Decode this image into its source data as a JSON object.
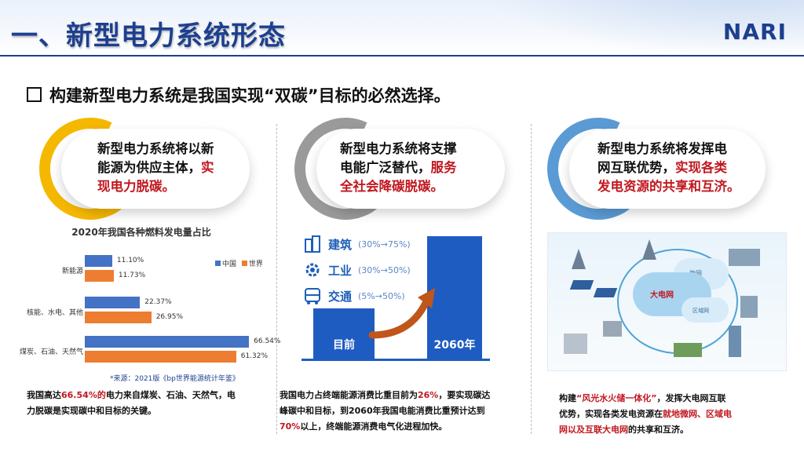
{
  "header": {
    "title": "一、新型电力系统形态",
    "logo": "NARI"
  },
  "subhead": "构建新型电力系统是我国实现“双碳”目标的必然选择。",
  "colors": {
    "accent": "#1d3f8f",
    "highlight": "#c0181f",
    "yellow": "#f5b800",
    "grey": "#9a9a9a",
    "lightblue": "#5b9bd5"
  },
  "cards": [
    {
      "line1": "新型电力系统将以新",
      "line2_a": "能源为供应主体，",
      "line2_b": "实",
      "line3": "现电力脱碳。"
    },
    {
      "line1": "新型电力系统将支撑",
      "line2_a": "电能广泛替代，",
      "line2_b": "服务",
      "line3": "全社会降碳脱碳。"
    },
    {
      "line1": "新型电力系统将发挥电",
      "line2_a": "网互联优势，",
      "line2_b": "实现各类",
      "line3": "发电资源的共享和互济。"
    }
  ],
  "chart_data": {
    "type": "bar",
    "title": "2020年我国各种燃料发电量占比",
    "orientation": "horizontal",
    "categories": [
      "新能源",
      "核能、水电、其他",
      "煤炭、石油、天然气"
    ],
    "series": [
      {
        "name": "中国",
        "color": "#4472c4",
        "values": [
          11.1,
          22.37,
          66.54
        ],
        "labels": [
          "11.10%",
          "22.37%",
          "66.54%"
        ]
      },
      {
        "name": "世界",
        "color": "#ed7d31",
        "values": [
          11.73,
          26.95,
          61.32
        ],
        "labels": [
          "11.73%",
          "26.95%",
          "61.32%"
        ]
      }
    ],
    "legend": "top-right",
    "note": "*来源：2021版《bp世界能源统计年鉴》"
  },
  "sectors": [
    {
      "name": "建筑",
      "range": "(30%→75%)"
    },
    {
      "name": "工业",
      "range": "(30%→50%)"
    },
    {
      "name": "交通",
      "range": "(5%→50%)"
    }
  ],
  "bars2": {
    "now": "目前",
    "future": "2060年"
  },
  "illus": {
    "main": "大电网",
    "micro": "微网",
    "regional": "区域网"
  },
  "desc1": {
    "a": "我国高达",
    "b": "66.54%的",
    "c": "电力来自煤炭、石油、天然气，电",
    "d": "力脱碳是实现碳中和目标的关键。"
  },
  "desc2": {
    "a": "我国电力占终端能源消费比重目前为",
    "b": "26%",
    "c": "，要实现碳达",
    "d": "峰碳中和目标，到2060年我国电能消费比重预计达到",
    "e": "70%",
    "f": "以上，终端能源消费电气化进程加快。"
  },
  "desc3": {
    "a": "构建",
    "b": "“风光水火储一体化”",
    "c": "，发挥大电网互联",
    "d": "优势，实现各类发电资源在",
    "e": "就地微网、区域电",
    "f": "网以及互联大电网",
    "g": "的共享和互济。"
  }
}
